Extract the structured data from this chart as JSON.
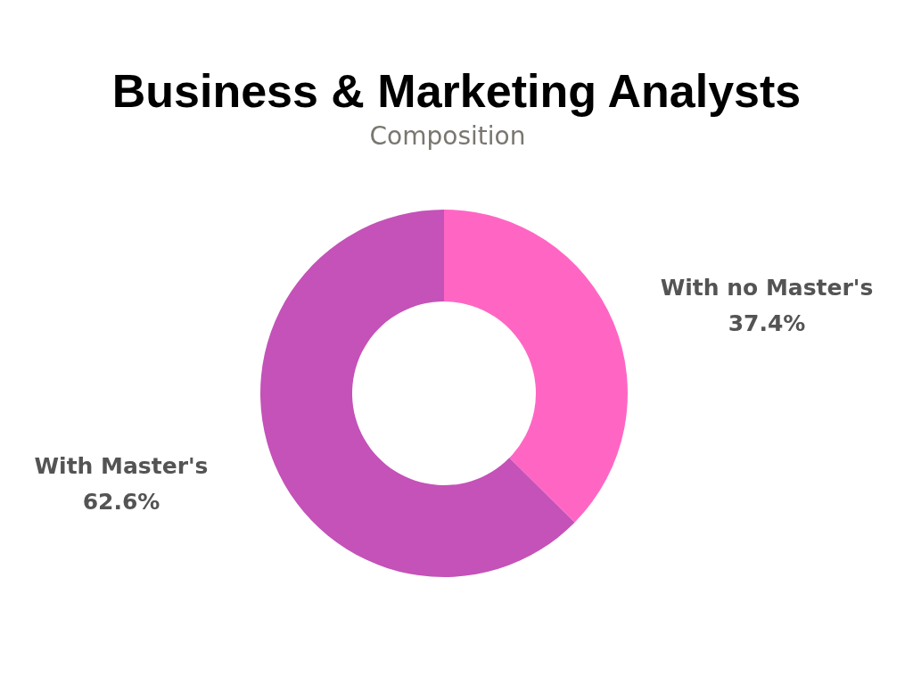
{
  "chart_data": {
    "type": "donut",
    "title": "Business & Marketing Analysts",
    "subtitle": "Composition",
    "categories": [
      "With no Master's",
      "With Master's"
    ],
    "values": [
      37.4,
      62.6
    ],
    "colors": [
      "#ff66c4",
      "#c452b8"
    ],
    "value_labels": [
      "37.4%",
      "62.6%"
    ]
  }
}
